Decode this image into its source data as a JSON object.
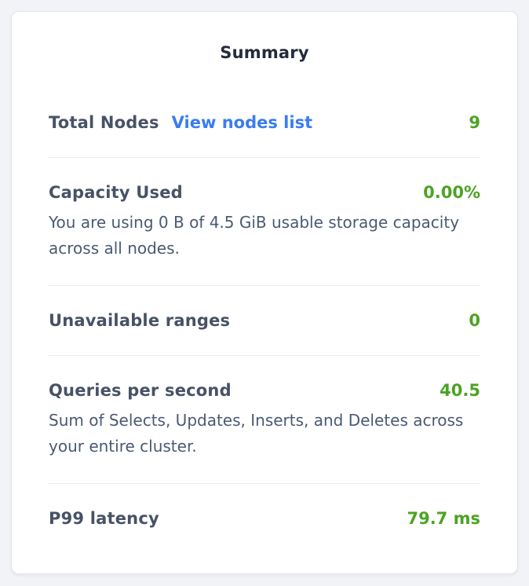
{
  "card": {
    "title": "Summary",
    "colors": {
      "value_green": "#4CA323",
      "link_blue": "#3A7CF0",
      "label_slate": "#475266",
      "description_slate": "#4A5A73",
      "title_dark": "#242B3D",
      "divider": "#ECEDF0",
      "card_border": "#E3E4E8",
      "page_background": "#F2F3F7"
    },
    "rows": [
      {
        "label": "Total Nodes",
        "link": "View nodes list",
        "value": "9"
      },
      {
        "label": "Capacity Used",
        "value": "0.00%",
        "description": "You are using 0 B of 4.5 GiB usable storage capacity across all nodes."
      },
      {
        "label": "Unavailable ranges",
        "value": "0"
      },
      {
        "label": "Queries per second",
        "value": "40.5",
        "description": "Sum of Selects, Updates, Inserts, and Deletes across your entire cluster."
      },
      {
        "label": "P99 latency",
        "value": "79.7 ms"
      }
    ]
  }
}
